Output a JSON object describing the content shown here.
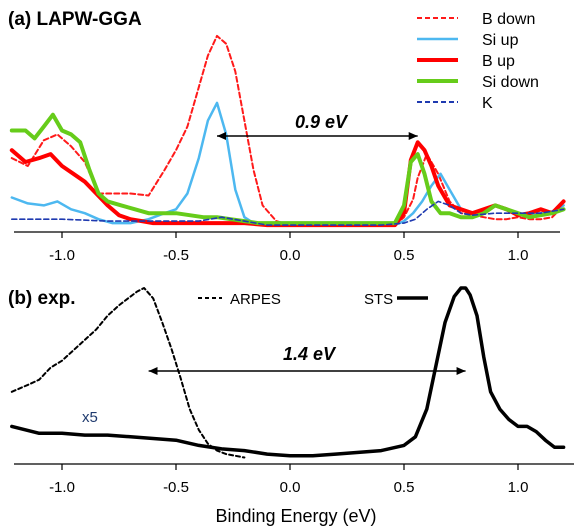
{
  "chart_data": [
    {
      "type": "line",
      "panel_label": "(a) LAPW-GGA",
      "xlim": [
        -1.22,
        1.2
      ],
      "xticks": [
        "-1.0",
        "-0.5",
        "0.0",
        "0.5",
        "1.0"
      ],
      "xtick_values": [
        -1.0,
        -0.5,
        0.0,
        0.5,
        1.0
      ],
      "ylim": [
        0,
        1
      ],
      "annotation": {
        "text": "0.9 eV",
        "x_from": -0.32,
        "x_to": 0.56
      },
      "legend_placement": "top-right",
      "series": [
        {
          "name": "B down",
          "color": "#ff1a1a",
          "dash": "5,3",
          "width": 2,
          "x": [
            -1.22,
            -1.15,
            -1.08,
            -1.02,
            -0.96,
            -0.9,
            -0.84,
            -0.78,
            -0.7,
            -0.62,
            -0.55,
            -0.5,
            -0.45,
            -0.4,
            -0.36,
            -0.32,
            -0.28,
            -0.24,
            -0.2,
            -0.16,
            -0.12,
            -0.06,
            0.0,
            0.1,
            0.2,
            0.3,
            0.4,
            0.46,
            0.5,
            0.54,
            0.56,
            0.6,
            0.65,
            0.7,
            0.75,
            0.8,
            0.85,
            0.9,
            0.95,
            1.0,
            1.05,
            1.1,
            1.15,
            1.2
          ],
          "y": [
            0.36,
            0.32,
            0.45,
            0.48,
            0.42,
            0.34,
            0.18,
            0.18,
            0.18,
            0.17,
            0.3,
            0.4,
            0.52,
            0.72,
            0.88,
            0.98,
            0.94,
            0.8,
            0.55,
            0.3,
            0.12,
            0.04,
            0.02,
            0.02,
            0.02,
            0.02,
            0.02,
            0.02,
            0.06,
            0.15,
            0.26,
            0.38,
            0.28,
            0.14,
            0.08,
            0.07,
            0.06,
            0.05,
            0.05,
            0.06,
            0.05,
            0.05,
            0.06,
            0.12
          ]
        },
        {
          "name": "Si up",
          "color": "#4db8f0",
          "dash": "",
          "width": 2.5,
          "x": [
            -1.22,
            -1.15,
            -1.08,
            -1.02,
            -0.96,
            -0.9,
            -0.84,
            -0.78,
            -0.7,
            -0.62,
            -0.55,
            -0.5,
            -0.45,
            -0.4,
            -0.36,
            -0.32,
            -0.28,
            -0.24,
            -0.2,
            -0.16,
            -0.12,
            -0.06,
            0.0,
            0.1,
            0.2,
            0.3,
            0.4,
            0.46,
            0.5,
            0.54,
            0.58,
            0.62,
            0.66,
            0.7,
            0.75,
            0.8,
            0.85,
            0.9,
            0.95,
            1.0,
            1.05,
            1.1,
            1.15,
            1.2
          ],
          "y": [
            0.16,
            0.13,
            0.12,
            0.14,
            0.1,
            0.08,
            0.05,
            0.03,
            0.03,
            0.05,
            0.08,
            0.1,
            0.18,
            0.36,
            0.55,
            0.64,
            0.48,
            0.2,
            0.06,
            0.03,
            0.02,
            0.02,
            0.02,
            0.02,
            0.02,
            0.02,
            0.02,
            0.02,
            0.04,
            0.08,
            0.14,
            0.22,
            0.28,
            0.2,
            0.1,
            0.08,
            0.1,
            0.12,
            0.1,
            0.07,
            0.07,
            0.08,
            0.09,
            0.12
          ]
        },
        {
          "name": "B up",
          "color": "#ff0000",
          "dash": "",
          "width": 4,
          "x": [
            -1.22,
            -1.16,
            -1.1,
            -1.05,
            -1.0,
            -0.95,
            -0.9,
            -0.85,
            -0.8,
            -0.75,
            -0.7,
            -0.65,
            -0.6,
            -0.55,
            -0.5,
            -0.4,
            -0.3,
            -0.2,
            -0.1,
            0.0,
            0.1,
            0.2,
            0.3,
            0.4,
            0.46,
            0.5,
            0.53,
            0.56,
            0.59,
            0.62,
            0.65,
            0.7,
            0.75,
            0.8,
            0.85,
            0.9,
            0.95,
            1.0,
            1.05,
            1.1,
            1.15,
            1.2
          ],
          "y": [
            0.4,
            0.34,
            0.36,
            0.38,
            0.32,
            0.28,
            0.24,
            0.18,
            0.12,
            0.07,
            0.05,
            0.04,
            0.03,
            0.03,
            0.03,
            0.03,
            0.03,
            0.03,
            0.02,
            0.02,
            0.02,
            0.02,
            0.02,
            0.02,
            0.02,
            0.08,
            0.35,
            0.44,
            0.4,
            0.32,
            0.22,
            0.12,
            0.1,
            0.08,
            0.1,
            0.12,
            0.1,
            0.07,
            0.08,
            0.1,
            0.08,
            0.14
          ]
        },
        {
          "name": "Si down",
          "color": "#66cc1a",
          "dash": "",
          "width": 4,
          "x": [
            -1.22,
            -1.16,
            -1.12,
            -1.08,
            -1.04,
            -1.0,
            -0.96,
            -0.92,
            -0.88,
            -0.84,
            -0.8,
            -0.74,
            -0.68,
            -0.62,
            -0.56,
            -0.5,
            -0.44,
            -0.38,
            -0.32,
            -0.26,
            -0.2,
            -0.14,
            -0.06,
            0.0,
            0.1,
            0.2,
            0.3,
            0.4,
            0.46,
            0.5,
            0.53,
            0.56,
            0.59,
            0.62,
            0.66,
            0.7,
            0.75,
            0.8,
            0.85,
            0.9,
            0.95,
            1.0,
            1.05,
            1.1,
            1.15,
            1.2
          ],
          "y": [
            0.5,
            0.5,
            0.46,
            0.52,
            0.58,
            0.5,
            0.48,
            0.44,
            0.3,
            0.18,
            0.14,
            0.12,
            0.1,
            0.08,
            0.08,
            0.08,
            0.07,
            0.06,
            0.06,
            0.05,
            0.04,
            0.03,
            0.03,
            0.03,
            0.03,
            0.03,
            0.03,
            0.03,
            0.03,
            0.12,
            0.34,
            0.38,
            0.28,
            0.14,
            0.08,
            0.08,
            0.06,
            0.06,
            0.08,
            0.12,
            0.1,
            0.08,
            0.06,
            0.07,
            0.08,
            0.1
          ]
        },
        {
          "name": "K",
          "color": "#1f3ab0",
          "dash": "5,3",
          "width": 1.6,
          "x": [
            -1.22,
            -1.0,
            -0.8,
            -0.6,
            -0.5,
            -0.4,
            -0.3,
            -0.2,
            -0.1,
            0.0,
            0.2,
            0.4,
            0.5,
            0.55,
            0.6,
            0.65,
            0.7,
            0.75,
            0.8,
            0.9,
            1.0,
            1.1,
            1.2
          ],
          "y": [
            0.05,
            0.05,
            0.04,
            0.04,
            0.04,
            0.04,
            0.06,
            0.04,
            0.02,
            0.02,
            0.02,
            0.02,
            0.03,
            0.05,
            0.1,
            0.14,
            0.12,
            0.08,
            0.07,
            0.08,
            0.08,
            0.08,
            0.1
          ]
        }
      ]
    },
    {
      "type": "line",
      "panel_label": "(b) exp.",
      "xlim": [
        -1.22,
        1.2
      ],
      "xticks": [
        "-1.0",
        "-0.5",
        "0.0",
        "0.5",
        "1.0"
      ],
      "xtick_values": [
        -1.0,
        -0.5,
        0.0,
        0.5,
        1.0
      ],
      "xlabel": "Binding Energy (eV)",
      "ylim": [
        0,
        1
      ],
      "annotation": {
        "text": "1.4 eV",
        "x_from": -0.62,
        "x_to": 0.77
      },
      "scale_note": "x5",
      "legend_placement": "top",
      "series": [
        {
          "name": "ARPES",
          "color": "#000000",
          "dash": "4,3",
          "width": 2,
          "x": [
            -1.22,
            -1.15,
            -1.1,
            -1.05,
            -1.0,
            -0.95,
            -0.9,
            -0.85,
            -0.8,
            -0.75,
            -0.7,
            -0.67,
            -0.64,
            -0.6,
            -0.56,
            -0.52,
            -0.48,
            -0.44,
            -0.4,
            -0.36,
            -0.32,
            -0.28,
            -0.24,
            -0.2
          ],
          "y": [
            0.4,
            0.44,
            0.47,
            0.54,
            0.58,
            0.64,
            0.7,
            0.76,
            0.84,
            0.9,
            0.95,
            0.98,
            1.0,
            0.94,
            0.8,
            0.65,
            0.48,
            0.3,
            0.18,
            0.1,
            0.06,
            0.04,
            0.03,
            0.02
          ]
        },
        {
          "name": "STS",
          "color": "#000000",
          "dash": "",
          "width": 3.5,
          "x": [
            -1.22,
            -1.1,
            -1.0,
            -0.9,
            -0.8,
            -0.7,
            -0.6,
            -0.5,
            -0.4,
            -0.3,
            -0.2,
            -0.1,
            0.0,
            0.1,
            0.2,
            0.3,
            0.4,
            0.5,
            0.55,
            0.6,
            0.64,
            0.68,
            0.72,
            0.75,
            0.77,
            0.79,
            0.82,
            0.85,
            0.88,
            0.92,
            0.96,
            1.0,
            1.04,
            1.08,
            1.12,
            1.16,
            1.2
          ],
          "y": [
            0.2,
            0.16,
            0.16,
            0.15,
            0.15,
            0.14,
            0.13,
            0.12,
            0.09,
            0.07,
            0.06,
            0.04,
            0.03,
            0.03,
            0.04,
            0.05,
            0.06,
            0.09,
            0.14,
            0.3,
            0.55,
            0.8,
            0.95,
            1.0,
            1.0,
            0.96,
            0.84,
            0.6,
            0.4,
            0.3,
            0.24,
            0.2,
            0.2,
            0.17,
            0.12,
            0.08,
            0.08
          ]
        }
      ]
    }
  ]
}
